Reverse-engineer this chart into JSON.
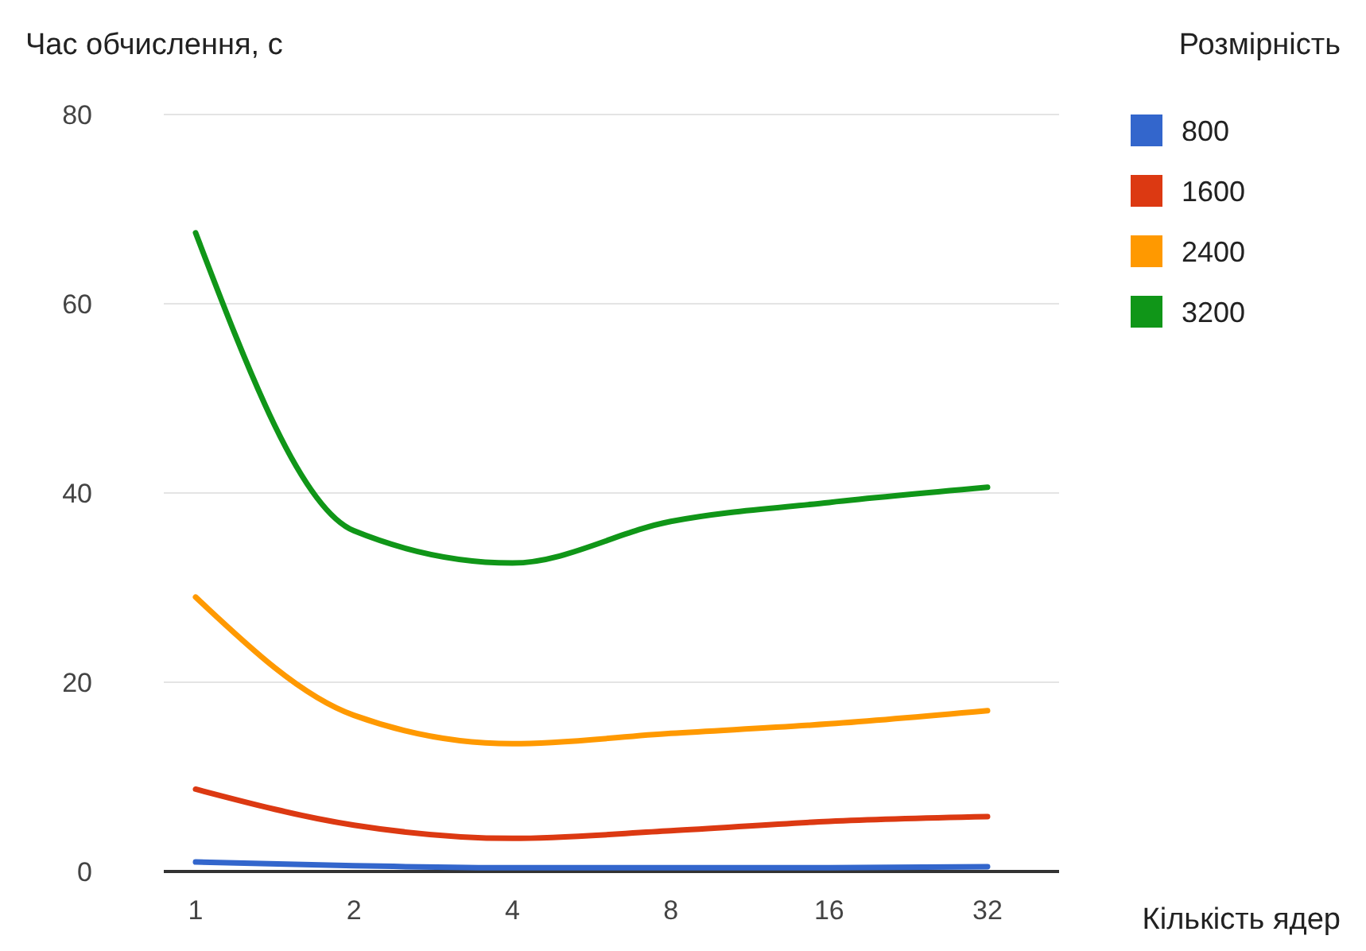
{
  "chart_data": {
    "type": "line",
    "ylabel": "Час обчислення, с",
    "xlabel": "Кількість ядер",
    "legend_title": "Розмірність",
    "categories": [
      "1",
      "2",
      "4",
      "8",
      "16",
      "32"
    ],
    "series": [
      {
        "name": "800",
        "color": "#3366cc",
        "values": [
          1.0,
          0.6,
          0.4,
          0.4,
          0.4,
          0.5
        ]
      },
      {
        "name": "1600",
        "color": "#dc3912",
        "values": [
          8.7,
          4.9,
          3.5,
          4.3,
          5.3,
          5.8
        ]
      },
      {
        "name": "2400",
        "color": "#ff9900",
        "values": [
          29,
          16.5,
          13.5,
          14.6,
          15.6,
          17
        ]
      },
      {
        "name": "3200",
        "color": "#109618",
        "values": [
          67.5,
          36,
          32.6,
          37,
          39,
          40.6
        ]
      }
    ],
    "ylim": [
      0,
      80
    ],
    "yticks": [
      0,
      20,
      40,
      60,
      80
    ],
    "grid": "y",
    "legend": "top right",
    "marker": "none",
    "line_style": "solid"
  }
}
